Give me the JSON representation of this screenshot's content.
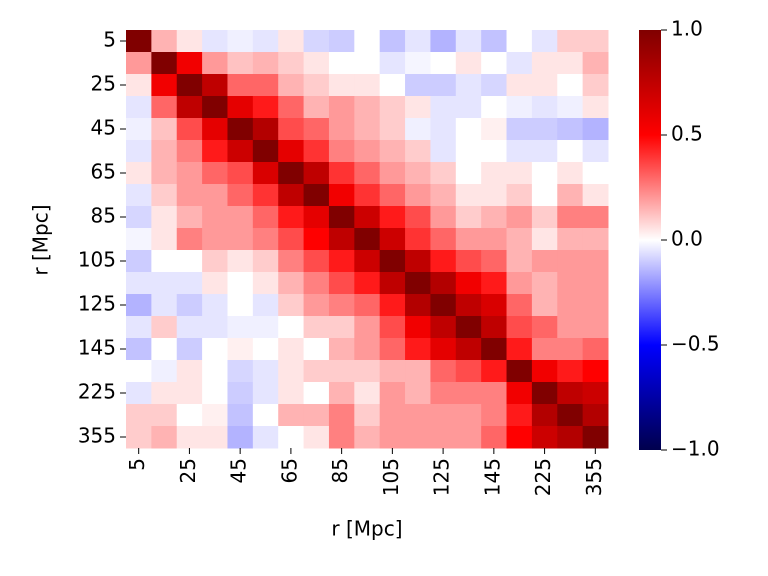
{
  "chart_data": {
    "type": "heatmap",
    "xlabel": "r [Mpc]",
    "ylabel": "r [Mpc]",
    "categories": [
      "5",
      null,
      "25",
      null,
      "45",
      null,
      "65",
      null,
      "85",
      null,
      "105",
      null,
      "125",
      null,
      "145",
      null,
      "225",
      null,
      "355"
    ],
    "colormap": "seismic",
    "clim": [
      -1.0,
      1.0
    ],
    "cticks": [
      {
        "value": -1.0,
        "label": "−1.0"
      },
      {
        "value": -0.5,
        "label": "−0.5"
      },
      {
        "value": 0.0,
        "label": "0.0"
      },
      {
        "value": 0.5,
        "label": "0.5"
      },
      {
        "value": 1.0,
        "label": "1.0"
      }
    ],
    "z": [
      [
        1,
        0.15,
        0.05,
        -0.05,
        -0.03,
        -0.05,
        0.05,
        -0.08,
        -0.1,
        0,
        -0.12,
        -0.05,
        -0.15,
        -0.05,
        -0.12,
        0,
        -0.05,
        0.1,
        0.1
      ],
      [
        0.2,
        1,
        0.55,
        0.2,
        0.12,
        0.15,
        0.1,
        0.05,
        0,
        0,
        -0.05,
        -0.02,
        0,
        0.05,
        0,
        -0.05,
        0.05,
        0.05,
        0.15
      ],
      [
        0.05,
        0.55,
        1,
        0.75,
        0.3,
        0.3,
        0.15,
        0.1,
        0.05,
        0.05,
        0,
        -0.1,
        -0.1,
        -0.05,
        -0.08,
        0.05,
        0.05,
        0,
        0.1
      ],
      [
        -0.05,
        0.3,
        0.75,
        1,
        0.6,
        0.45,
        0.3,
        0.15,
        0.2,
        0.15,
        0.1,
        0.05,
        -0.05,
        -0.05,
        0,
        -0.03,
        -0.05,
        -0.03,
        0.05
      ],
      [
        -0.03,
        0.12,
        0.35,
        0.6,
        1,
        0.8,
        0.35,
        0.3,
        0.2,
        0.15,
        0.1,
        -0.03,
        -0.05,
        0,
        0.03,
        -0.1,
        -0.1,
        -0.12,
        -0.15
      ],
      [
        -0.05,
        0.15,
        0.25,
        0.45,
        0.7,
        1,
        0.6,
        0.4,
        0.25,
        0.2,
        0.15,
        0.1,
        -0.05,
        0,
        0,
        -0.05,
        -0.05,
        0,
        -0.05
      ],
      [
        0.05,
        0.15,
        0.2,
        0.3,
        0.35,
        0.65,
        1,
        0.75,
        0.4,
        0.3,
        0.2,
        0.15,
        0.1,
        0,
        0.05,
        0.05,
        0,
        0.05,
        0
      ],
      [
        -0.05,
        0.1,
        0.2,
        0.2,
        0.3,
        0.4,
        0.75,
        1,
        0.55,
        0.4,
        0.3,
        0.2,
        0.15,
        0.05,
        0.05,
        0.1,
        0,
        0.15,
        0.05
      ],
      [
        -0.08,
        0.05,
        0.15,
        0.2,
        0.2,
        0.3,
        0.45,
        0.6,
        1,
        0.7,
        0.45,
        0.35,
        0.2,
        0.1,
        0.15,
        0.2,
        0.1,
        0.25,
        0.25
      ],
      [
        -0.02,
        0.05,
        0.25,
        0.2,
        0.2,
        0.25,
        0.35,
        0.5,
        0.75,
        1,
        0.7,
        0.4,
        0.3,
        0.2,
        0.2,
        0.15,
        0.05,
        0.15,
        0.15
      ],
      [
        -0.1,
        0,
        0,
        0.1,
        0.05,
        0.1,
        0.25,
        0.35,
        0.45,
        0.7,
        1,
        0.75,
        0.45,
        0.35,
        0.3,
        0.15,
        0.2,
        0.2,
        0.2
      ],
      [
        -0.05,
        -0.05,
        -0.05,
        0.05,
        0,
        0.05,
        0.15,
        0.25,
        0.35,
        0.45,
        0.75,
        1,
        0.8,
        0.55,
        0.45,
        0.2,
        0.15,
        0.2,
        0.2
      ],
      [
        -0.15,
        -0.05,
        -0.1,
        -0.05,
        0,
        -0.05,
        0.1,
        0.2,
        0.25,
        0.3,
        0.45,
        0.8,
        1,
        0.75,
        0.65,
        0.3,
        0.15,
        0.2,
        0.2
      ],
      [
        -0.05,
        0.1,
        -0.05,
        -0.05,
        -0.03,
        -0.03,
        0,
        0.1,
        0.1,
        0.2,
        0.35,
        0.55,
        0.75,
        1,
        0.75,
        0.35,
        0.3,
        0.2,
        0.2
      ],
      [
        -0.12,
        0,
        -0.1,
        0,
        0.03,
        0,
        0.05,
        0,
        0.15,
        0.2,
        0.3,
        0.45,
        0.6,
        0.75,
        1,
        0.45,
        0.25,
        0.25,
        0.3
      ],
      [
        0,
        -0.03,
        0.05,
        0,
        -0.08,
        -0.05,
        0.05,
        0.1,
        0.1,
        0.1,
        0.15,
        0.15,
        0.3,
        0.35,
        0.45,
        1,
        0.55,
        0.45,
        0.5
      ],
      [
        -0.05,
        0.05,
        0.05,
        0,
        -0.1,
        -0.05,
        0.05,
        0,
        0.15,
        0.05,
        0.2,
        0.15,
        0.25,
        0.25,
        0.25,
        0.55,
        1,
        0.75,
        0.7
      ],
      [
        0.1,
        0.1,
        0,
        0.03,
        -0.12,
        0,
        0.15,
        0.15,
        0.25,
        0.1,
        0.2,
        0.2,
        0.2,
        0.2,
        0.25,
        0.45,
        0.8,
        1,
        0.8
      ],
      [
        0.1,
        0.15,
        0.05,
        0.05,
        -0.15,
        -0.05,
        0,
        0.05,
        0.25,
        0.15,
        0.2,
        0.2,
        0.2,
        0.2,
        0.3,
        0.5,
        0.7,
        0.8,
        1
      ]
    ]
  }
}
